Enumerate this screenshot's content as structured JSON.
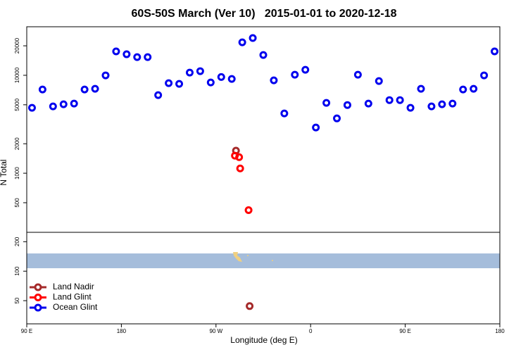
{
  "chart_data": {
    "type": "scatter",
    "title": "60S-50S March (Ver 10)   2015-01-01 to 2020-12-18",
    "x_label": "Longitude (deg E)",
    "y_label": "N Total",
    "xlim": [
      90,
      540
    ],
    "xticks": [
      {
        "value": 90,
        "label": "90 E"
      },
      {
        "value": 180,
        "label": "180"
      },
      {
        "value": 270,
        "label": "90 W"
      },
      {
        "value": 360,
        "label": "0"
      },
      {
        "value": 450,
        "label": "90 E"
      },
      {
        "value": 540,
        "label": "180"
      }
    ],
    "ylim": [
      29,
      31300
    ],
    "log_y": true,
    "yticks": [
      50,
      100,
      200,
      500,
      1000,
      2000,
      5000,
      10000,
      20000
    ],
    "legend": "bottom-left",
    "series": [
      {
        "name": "Land Nadir",
        "color": "#a52a2a",
        "x": [
          289,
          302
        ],
        "values": [
          1700,
          44
        ]
      },
      {
        "name": "Land Glint",
        "color": "#ff0000",
        "x": [
          288,
          292,
          293,
          301
        ],
        "values": [
          1510,
          1460,
          1120,
          420
        ]
      },
      {
        "name": "Ocean Glint",
        "color": "#0000ee",
        "x": [
          95,
          105,
          115,
          125,
          135,
          145,
          155,
          165,
          175,
          185,
          195,
          205,
          215,
          225,
          235,
          245,
          255,
          265,
          275,
          285,
          295,
          305,
          315,
          325,
          335,
          345,
          355,
          365,
          375,
          385,
          395,
          405,
          415,
          425,
          435,
          445,
          455,
          465,
          475,
          485,
          495,
          505,
          515,
          525,
          535
        ],
        "values": [
          4660,
          7160,
          4810,
          5060,
          5140,
          7160,
          7280,
          9980,
          17530,
          16400,
          15340,
          15340,
          6270,
          8310,
          8180,
          10660,
          11020,
          8450,
          9600,
          9180,
          21720,
          24000,
          16120,
          8880,
          4080,
          10140,
          11390,
          2930,
          5230,
          3630,
          4970,
          10140,
          5140,
          8730,
          5580,
          5580,
          4660,
          7280,
          4810,
          5060,
          5140,
          7160,
          7280,
          9980,
          17530
        ]
      }
    ]
  }
}
